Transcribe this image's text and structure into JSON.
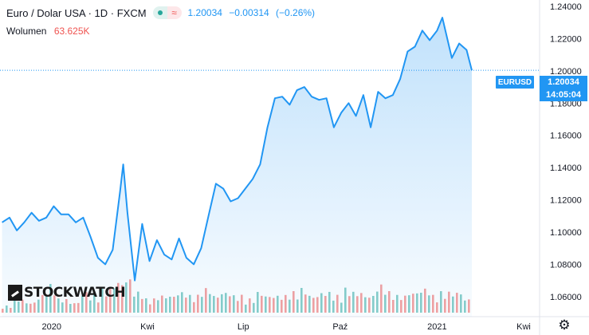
{
  "header": {
    "symbol": "Euro / Dolar USA · 1D · FXCM",
    "price": "1.20034",
    "change": "−0.00314",
    "change_pct": "(−0.26%)"
  },
  "volume_legend": {
    "label": "Wolumen",
    "value": "63.625K"
  },
  "logo": {
    "text": "STOCKWATCH"
  },
  "price_label": {
    "symbol": "EURUSD",
    "price": "1.20034",
    "countdown": "14:05:04"
  },
  "icons": {
    "settings": "gear-icon",
    "status": "market-status-icon"
  },
  "colors": {
    "line": "#2196f3",
    "up_volume": "#26a69a",
    "down_volume": "#ef5350"
  },
  "chart_data": {
    "type": "area",
    "series": [
      {
        "x": [
          "2019-11-15",
          "2019-11-22",
          "2019-11-29",
          "2019-12-06",
          "2019-12-13",
          "2019-12-20",
          "2019-12-27",
          "2020-01-03",
          "2020-01-10",
          "2020-01-17",
          "2020-01-24",
          "2020-01-31",
          "2020-02-07",
          "2020-02-14",
          "2020-02-21",
          "2020-02-28",
          "2020-03-06",
          "2020-03-09",
          "2020-03-13",
          "2020-03-20",
          "2020-03-27",
          "2020-04-03",
          "2020-04-10",
          "2020-04-17",
          "2020-04-24",
          "2020-05-01",
          "2020-05-08",
          "2020-05-15",
          "2020-05-22",
          "2020-05-29",
          "2020-06-05",
          "2020-06-12",
          "2020-06-19",
          "2020-06-26",
          "2020-07-03",
          "2020-07-10",
          "2020-07-17",
          "2020-07-24",
          "2020-07-31",
          "2020-08-07",
          "2020-08-14",
          "2020-08-21",
          "2020-08-28",
          "2020-09-04",
          "2020-09-11",
          "2020-09-18",
          "2020-09-25",
          "2020-10-02",
          "2020-10-09",
          "2020-10-16",
          "2020-10-23",
          "2020-10-30",
          "2020-11-06",
          "2020-11-13",
          "2020-11-20",
          "2020-11-27",
          "2020-12-04",
          "2020-12-11",
          "2020-12-18",
          "2020-12-25",
          "2021-01-01",
          "2021-01-06",
          "2021-01-15",
          "2021-01-22",
          "2021-01-29",
          "2021-02-03"
        ],
        "y": [
          1.106,
          1.109,
          1.101,
          1.106,
          1.112,
          1.107,
          1.109,
          1.116,
          1.111,
          1.111,
          1.106,
          1.109,
          1.097,
          1.084,
          1.08,
          1.089,
          1.125,
          1.142,
          1.112,
          1.07,
          1.105,
          1.082,
          1.095,
          1.086,
          1.083,
          1.096,
          1.084,
          1.08,
          1.09,
          1.11,
          1.13,
          1.127,
          1.119,
          1.121,
          1.127,
          1.133,
          1.142,
          1.165,
          1.183,
          1.184,
          1.179,
          1.188,
          1.19,
          1.184,
          1.182,
          1.183,
          1.165,
          1.174,
          1.18,
          1.172,
          1.185,
          1.165,
          1.187,
          1.183,
          1.185,
          1.195,
          1.212,
          1.215,
          1.225,
          1.219,
          1.225,
          1.233,
          1.208,
          1.217,
          1.213,
          1.2003
        ]
      }
    ],
    "x_ticks": [
      "2020",
      "Kwi",
      "Lip",
      "Paź",
      "2021",
      "Kwi"
    ],
    "y_ticks": [
      "1.24000",
      "1.22000",
      "1.20000",
      "1.18000",
      "1.16000",
      "1.14000",
      "1.12000",
      "1.10000",
      "1.08000",
      "1.06000"
    ],
    "ylim": [
      1.05,
      1.24
    ],
    "last_value": 1.20034,
    "volume": {
      "max_label": "63.625K",
      "levels": [
        0.2,
        0.4,
        0.3,
        0.5,
        0.8,
        0.4,
        0.3,
        0.6,
        0.5,
        0.7,
        0.9,
        1.0,
        0.6,
        0.4,
        0.5,
        0.5,
        0.6,
        0.5,
        0.7,
        0.5,
        0.6,
        0.5,
        0.4,
        0.6,
        0.5,
        0.5,
        0.6,
        0.7,
        0.5,
        0.6,
        0.5,
        0.7,
        0.6,
        0.5,
        0.8,
        0.6,
        0.5,
        0.6,
        0.7,
        0.5,
        0.6,
        0.6,
        0.4
      ]
    },
    "grid": false
  }
}
